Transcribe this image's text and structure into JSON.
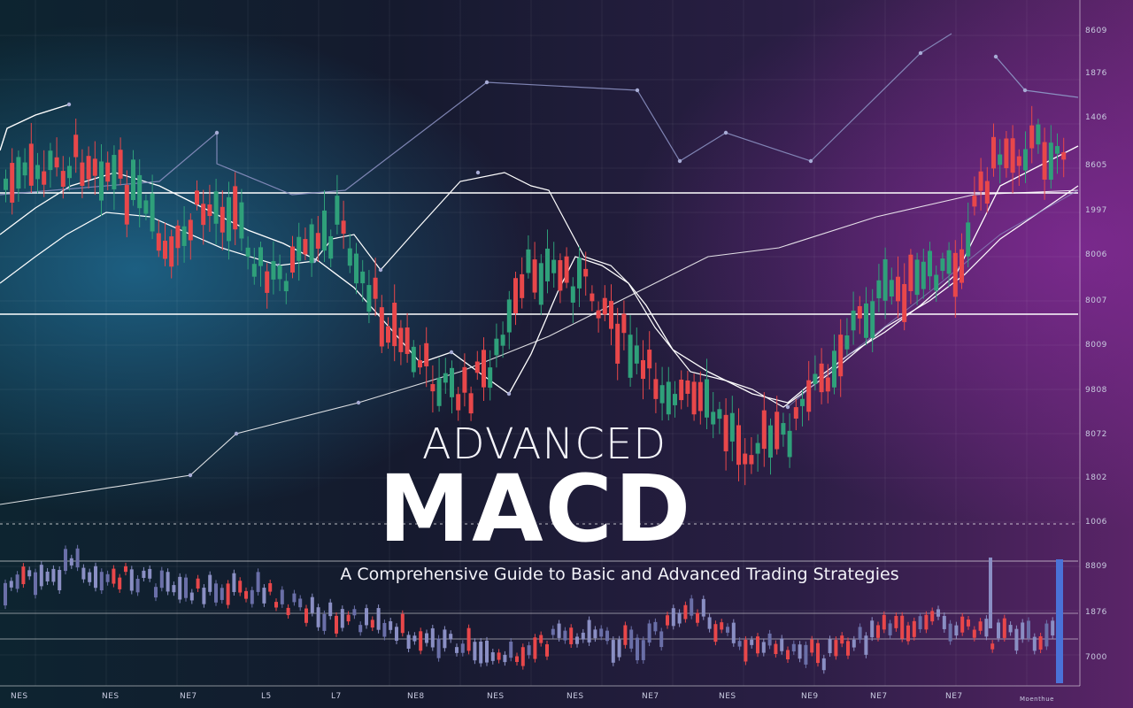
{
  "title": {
    "line1": "ADVANCED",
    "line2": "MACD",
    "subtitle": "A Comprehensive Guide to Basic and Advanced Trading Strategies"
  },
  "y_axis_labels": [
    "8609",
    "1876",
    "1406",
    "8605",
    "1997",
    "8006",
    "8007",
    "8009",
    "9808",
    "8072",
    "1802",
    "1006",
    "8809",
    "1876",
    "7000"
  ],
  "x_axis_labels": [
    "NES",
    "NES",
    "NE7",
    "L5",
    "L7",
    "NE8",
    "NES",
    "NES",
    "NE7",
    "NES",
    "NE9",
    "NE7",
    "NE7",
    "Moenthue"
  ],
  "colors": {
    "bull": "#2fa07a",
    "bear": "#e8474a",
    "line": "#ffffff",
    "accent_line": "#8a8fc0",
    "macd_bar": "#4a72d8"
  }
}
